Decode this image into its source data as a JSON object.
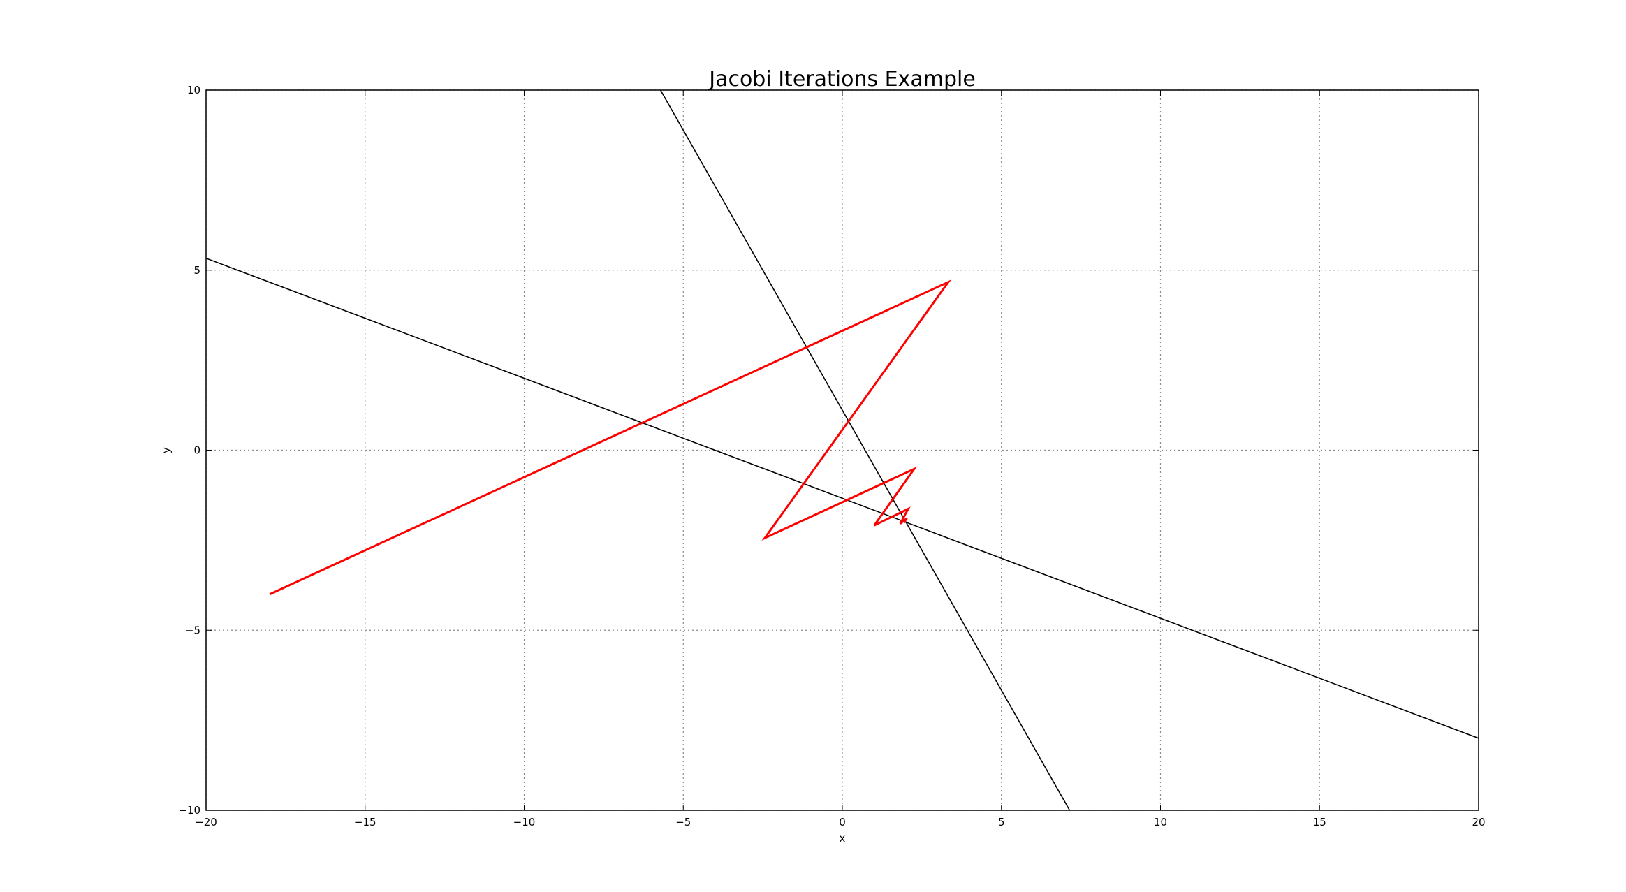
{
  "chart_data": {
    "type": "line",
    "title": "Jacobi Iterations Example",
    "xlabel": "x",
    "ylabel": "y",
    "xlim": [
      -20,
      20
    ],
    "ylim": [
      -10,
      10
    ],
    "xticks": [
      -20,
      -15,
      -10,
      -5,
      0,
      5,
      10,
      15,
      20
    ],
    "yticks": [
      -10,
      -5,
      0,
      5,
      10
    ],
    "grid": true,
    "series": [
      {
        "color": "#000000",
        "line_width": "thin",
        "x": [
          -7,
          8
        ],
        "y": [
          12,
          -11.33
        ]
      },
      {
        "color": "#000000",
        "line_width": "thin",
        "x": [
          -20,
          20
        ],
        "y": [
          5.33,
          -8
        ]
      },
      {
        "color": "#ff0000",
        "line_width": "thick",
        "x": [
          -18,
          3.33,
          -2.44,
          2.26,
          1.0,
          2.07,
          1.82,
          2.03,
          1.93,
          1.98
        ],
        "y": [
          -4,
          4.67,
          -2.44,
          -0.52,
          -2.09,
          -1.63,
          -2.04,
          -1.89,
          -2.01,
          -1.97
        ]
      }
    ]
  }
}
